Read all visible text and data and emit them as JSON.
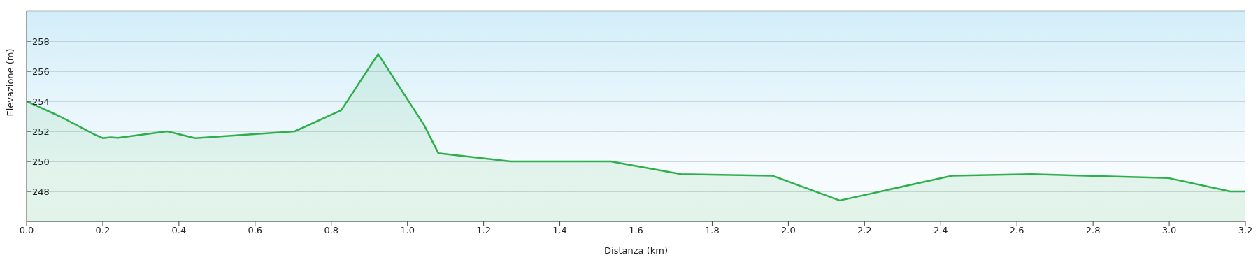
{
  "chart_data": {
    "type": "area",
    "xlabel": "Distanza  (km)",
    "ylabel": "Elevazione (m)",
    "x": [
      0,
      0.087,
      0.178,
      0.2,
      0.22,
      0.24,
      0.369,
      0.443,
      0.704,
      0.826,
      0.923,
      1.044,
      1.081,
      1.271,
      1.534,
      1.718,
      1.958,
      2.135,
      2.43,
      2.638,
      2.996,
      3.16,
      3.2
    ],
    "series": [
      {
        "color": "#2eaf4c",
        "values": [
          254,
          253,
          251.8,
          251.55,
          251.6,
          251.57,
          252,
          251.55,
          252,
          253.4,
          257.15,
          252.4,
          250.55,
          250,
          250,
          249.15,
          249.05,
          247.4,
          249.05,
          249.15,
          248.9,
          248,
          248
        ]
      }
    ],
    "xlim": [
      0,
      3.2
    ],
    "xticks": [
      {
        "value": 0,
        "label": "0.0"
      },
      {
        "value": 0.2,
        "label": "0.2"
      },
      {
        "value": 0.4,
        "label": "0.4"
      },
      {
        "value": 0.6,
        "label": "0.6"
      },
      {
        "value": 0.8,
        "label": "0.8"
      },
      {
        "value": 1,
        "label": "1.0"
      },
      {
        "value": 1.2,
        "label": "1.2"
      },
      {
        "value": 1.4,
        "label": "1.4"
      },
      {
        "value": 1.6,
        "label": "1.6"
      },
      {
        "value": 1.8,
        "label": "1.8"
      },
      {
        "value": 2,
        "label": "2.0"
      },
      {
        "value": 2.2,
        "label": "2.2"
      },
      {
        "value": 2.4,
        "label": "2.4"
      },
      {
        "value": 2.6,
        "label": "2.6"
      },
      {
        "value": 2.8,
        "label": "2.8"
      },
      {
        "value": 3,
        "label": "3.0"
      },
      {
        "value": 3.2,
        "label": "3.2"
      }
    ],
    "ylim": [
      246,
      260
    ],
    "yticks": [
      248,
      250,
      252,
      254,
      256,
      258
    ],
    "grid": "y",
    "marker": "none",
    "line_style": "solid"
  }
}
